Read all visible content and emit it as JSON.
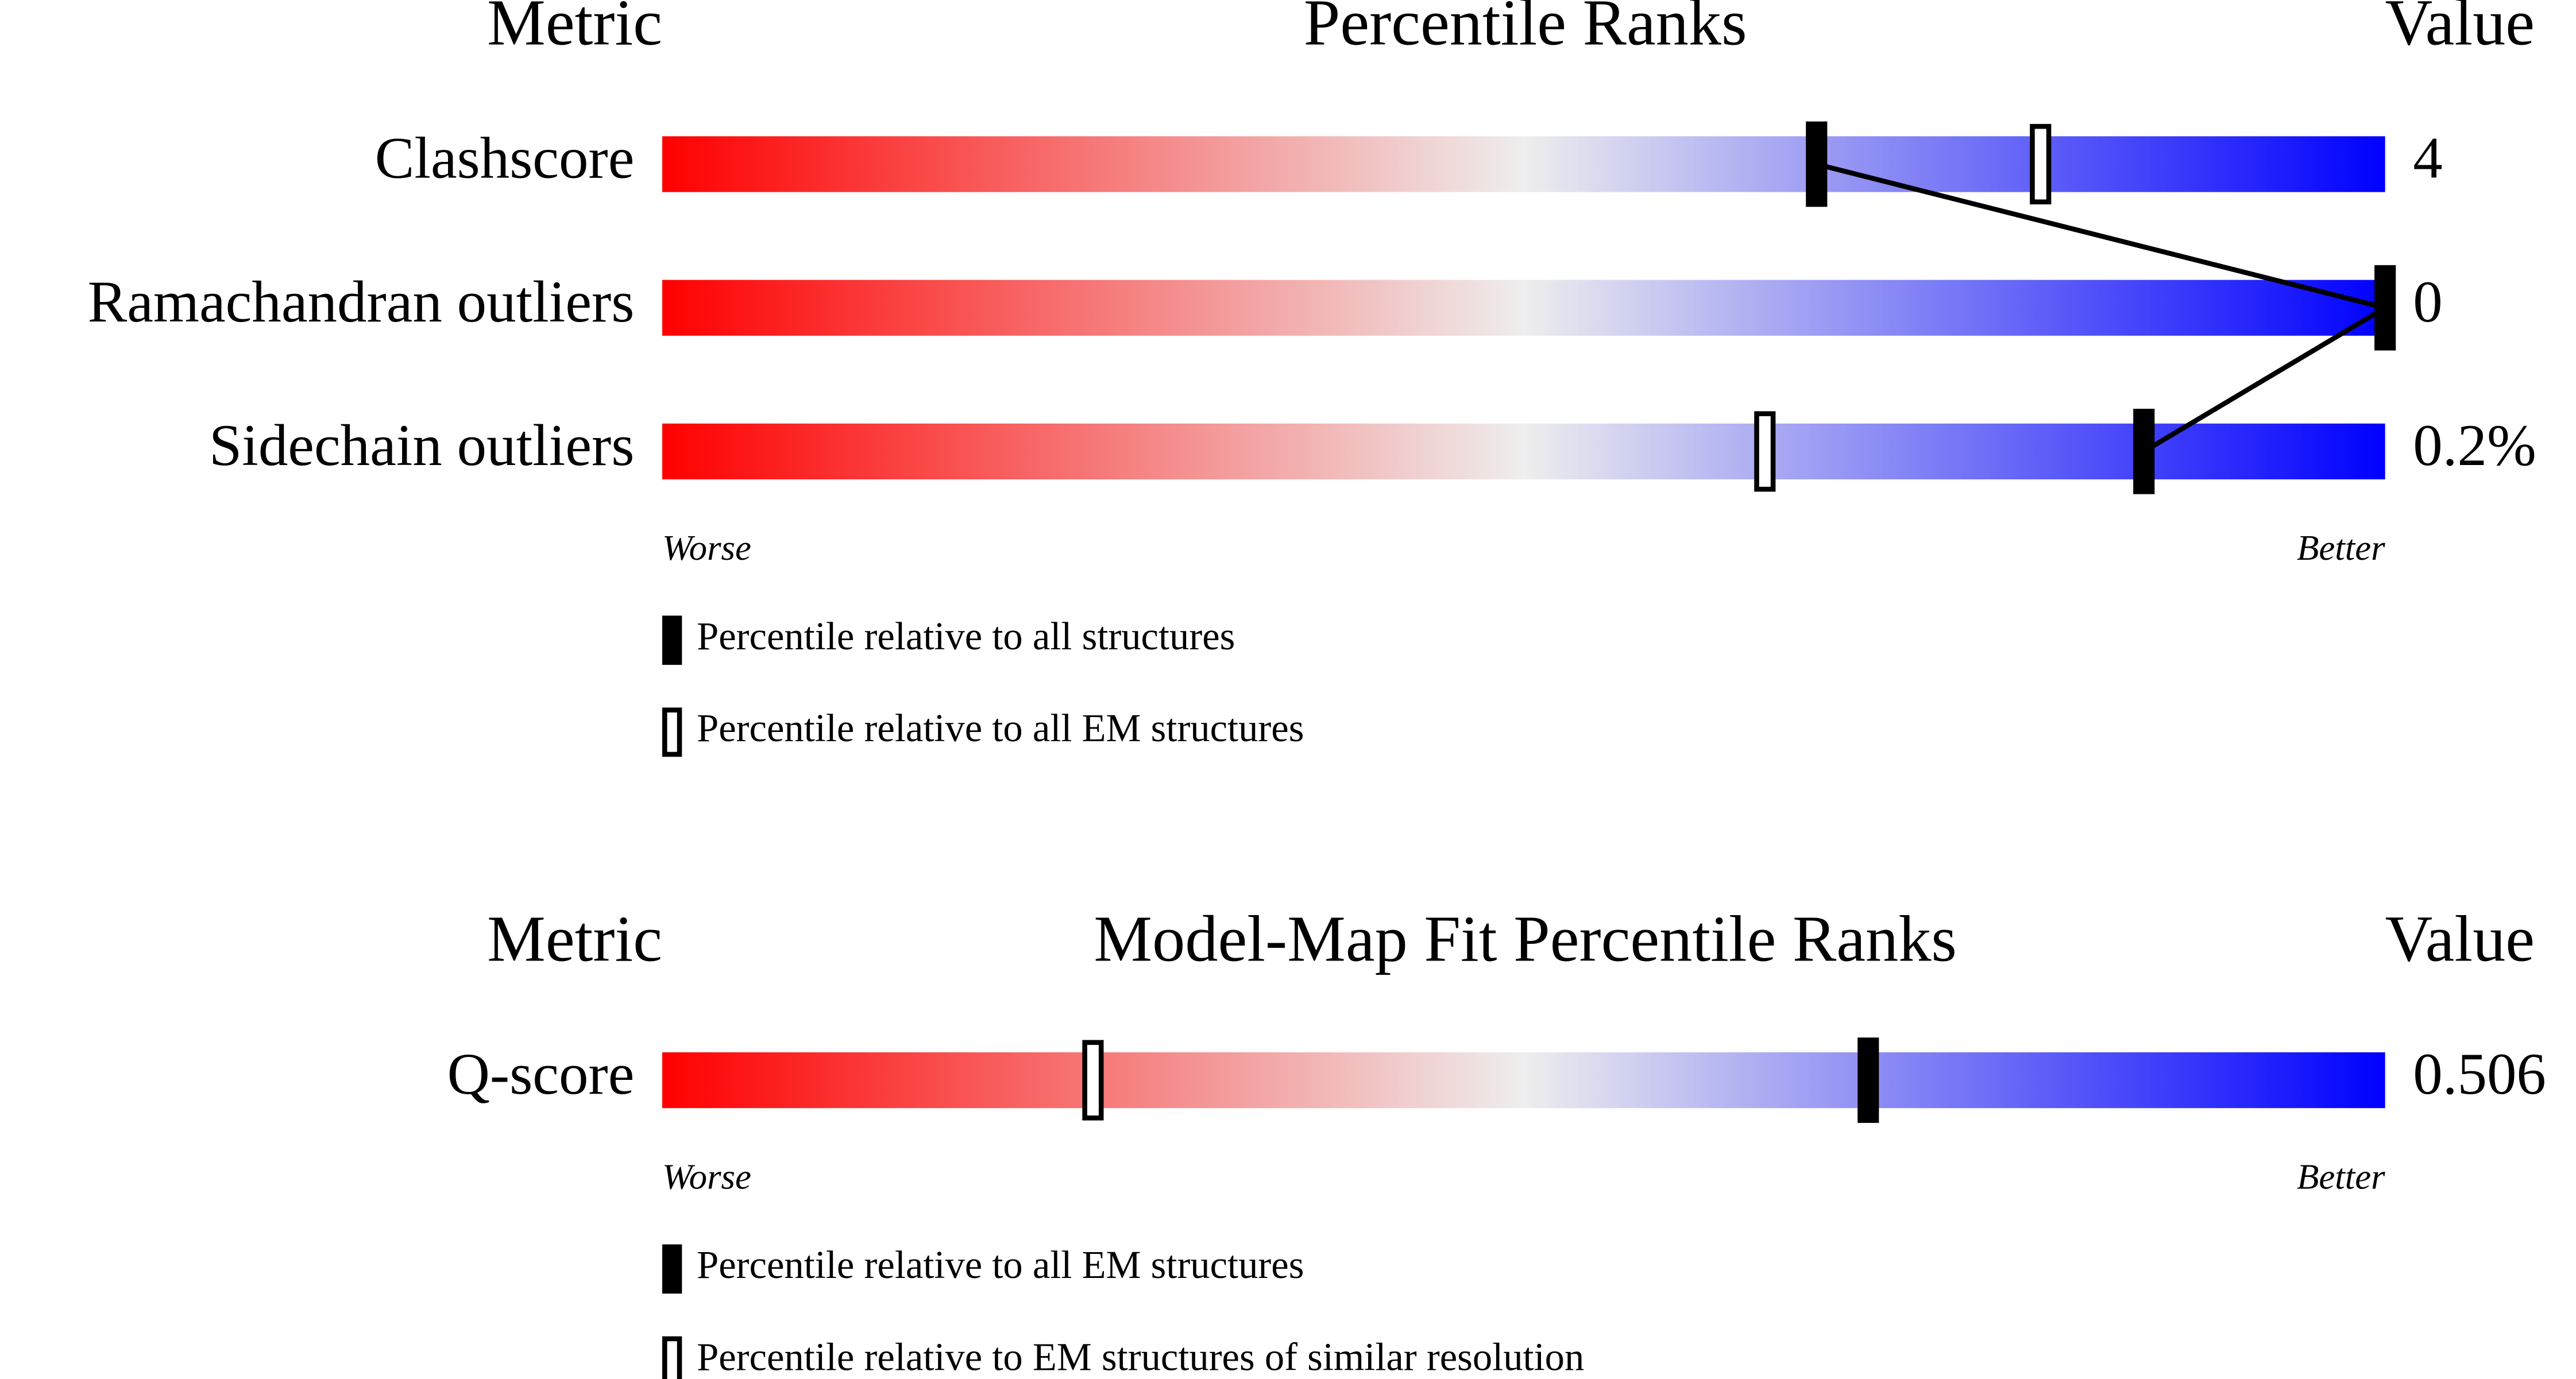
{
  "chart_data": [
    {
      "type": "percentile-slider",
      "headers": {
        "metric": "Metric",
        "title": "Percentile Ranks",
        "value": "Value"
      },
      "categories": [
        "Clashscore",
        "Ramachandran outliers",
        "Sidechain outliers"
      ],
      "metric_values": [
        "4",
        "0",
        "0.2%"
      ],
      "series": [
        {
          "name": "Percentile relative to all structures",
          "style": "filled",
          "color": "#000000",
          "values": [
            67,
            100,
            86
          ]
        },
        {
          "name": "Percentile relative to all EM structures",
          "style": "open",
          "color": "#000000",
          "values": [
            80,
            null,
            64
          ]
        }
      ],
      "xlim": [
        0,
        100
      ],
      "end_labels": {
        "low": "Worse",
        "high": "Better"
      },
      "colors": {
        "low": "#ff0000",
        "mid": "#eeeeee",
        "high": "#0000ff"
      }
    },
    {
      "type": "percentile-slider",
      "headers": {
        "metric": "Metric",
        "title": "Model-Map Fit Percentile Ranks",
        "value": "Value"
      },
      "categories": [
        "Q-score"
      ],
      "metric_values": [
        "0.506"
      ],
      "series": [
        {
          "name": "Percentile relative to all EM structures",
          "style": "filled",
          "color": "#000000",
          "values": [
            70
          ]
        },
        {
          "name": "Percentile relative to EM structures of similar resolution",
          "style": "open",
          "color": "#000000",
          "values": [
            25
          ]
        }
      ],
      "xlim": [
        0,
        100
      ],
      "end_labels": {
        "low": "Worse",
        "high": "Better"
      },
      "colors": {
        "low": "#ff0000",
        "mid": "#eeeeee",
        "high": "#0000ff"
      }
    }
  ]
}
